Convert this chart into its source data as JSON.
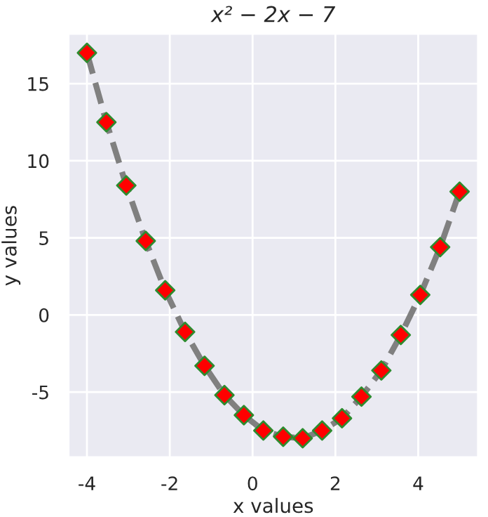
{
  "chart_data": {
    "type": "line",
    "title": "x² − 2x − 7",
    "xlabel": "x values",
    "ylabel": "y values",
    "x": [
      -4,
      -3.53,
      -3.05,
      -2.58,
      -2.11,
      -1.63,
      -1.16,
      -0.68,
      -0.21,
      0.26,
      0.74,
      1.21,
      1.68,
      2.16,
      2.63,
      3.11,
      3.58,
      4.05,
      4.53,
      5
    ],
    "series": [
      {
        "color": "#808080",
        "line_style": "dashed",
        "marker": "none",
        "values": [
          17,
          12.5,
          8.4,
          4.8,
          1.6,
          -1.1,
          -3.3,
          -5.2,
          -6.5,
          -7.5,
          -7.9,
          -8,
          -7.5,
          -6.7,
          -5.3,
          -3.6,
          -1.3,
          1.3,
          4.4,
          8
        ]
      },
      {
        "type": "scatter",
        "color": "#ff0000",
        "marker": "diamond",
        "values": [
          17,
          12.5,
          8.4,
          4.8,
          1.6,
          -1.1,
          -3.3,
          -5.2,
          -6.5,
          -7.5,
          -7.9,
          -8,
          -7.5,
          -6.7,
          -5.3,
          -3.6,
          -1.3,
          1.3,
          4.4,
          8
        ]
      }
    ],
    "xlim": [
      -4.45,
      5.45
    ],
    "ylim": [
      -9.25,
      18.25
    ],
    "xticks": [
      -4,
      -2,
      0,
      2,
      4
    ],
    "yticks": [
      -5,
      0,
      5,
      10,
      15
    ],
    "grid": true,
    "legend": false
  }
}
